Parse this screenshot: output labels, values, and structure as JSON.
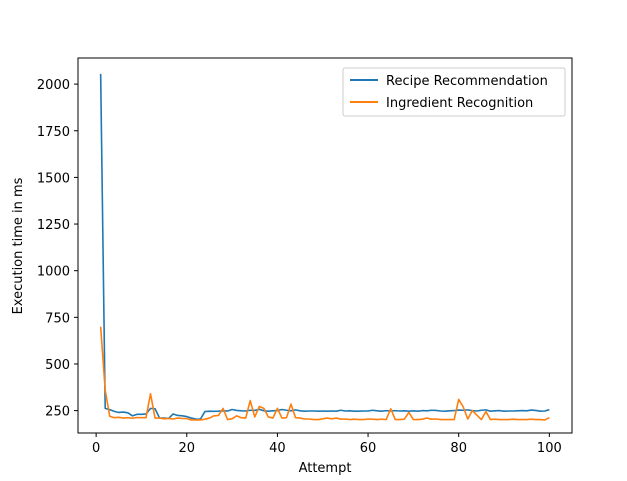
{
  "chart_data": {
    "type": "line",
    "title": "",
    "xlabel": "Attempt",
    "ylabel": "Execution time in ms",
    "xlim": [
      -4,
      105
    ],
    "ylim": [
      130,
      2140
    ],
    "xticks": [
      0,
      20,
      40,
      60,
      80,
      100
    ],
    "yticks": [
      250,
      500,
      750,
      1000,
      1250,
      1500,
      1750,
      2000
    ],
    "grid": false,
    "legend_position": "top-right",
    "series": [
      {
        "name": "Recipe Recommendation",
        "color": "#1f77b4",
        "x": [
          1,
          2,
          3,
          4,
          5,
          6,
          7,
          8,
          9,
          10,
          11,
          12,
          13,
          14,
          15,
          16,
          17,
          18,
          19,
          20,
          21,
          22,
          23,
          24,
          25,
          26,
          27,
          28,
          29,
          30,
          31,
          32,
          33,
          34,
          35,
          36,
          37,
          38,
          39,
          40,
          41,
          42,
          43,
          44,
          45,
          46,
          47,
          48,
          49,
          50,
          51,
          52,
          53,
          54,
          55,
          56,
          57,
          58,
          59,
          60,
          61,
          62,
          63,
          64,
          65,
          66,
          67,
          68,
          69,
          70,
          71,
          72,
          73,
          74,
          75,
          76,
          77,
          78,
          79,
          80,
          81,
          82,
          83,
          84,
          85,
          86,
          87,
          88,
          89,
          90,
          91,
          92,
          93,
          94,
          95,
          96,
          97,
          98,
          99,
          100
        ],
        "values": [
          2055,
          262,
          255,
          246,
          240,
          242,
          238,
          222,
          230,
          230,
          232,
          262,
          260,
          210,
          210,
          208,
          232,
          224,
          222,
          218,
          210,
          205,
          204,
          245,
          247,
          246,
          247,
          249,
          248,
          256,
          251,
          249,
          248,
          252,
          251,
          257,
          249,
          247,
          249,
          250,
          256,
          252,
          249,
          254,
          249,
          247,
          248,
          248,
          247,
          248,
          247,
          248,
          247,
          252,
          248,
          249,
          247,
          247,
          248,
          248,
          252,
          249,
          247,
          250,
          248,
          250,
          248,
          249,
          247,
          249,
          247,
          250,
          249,
          252,
          251,
          248,
          247,
          249,
          250,
          253,
          252,
          254,
          250,
          248,
          252,
          254,
          247,
          249,
          250,
          247,
          248,
          248,
          249,
          250,
          249,
          253,
          251,
          247,
          248,
          255
        ]
      },
      {
        "name": "Ingredient Recognition",
        "color": "#ff7f0e",
        "x": [
          1,
          2,
          3,
          4,
          5,
          6,
          7,
          8,
          9,
          10,
          11,
          12,
          13,
          14,
          15,
          16,
          17,
          18,
          19,
          20,
          21,
          22,
          23,
          24,
          25,
          26,
          27,
          28,
          29,
          30,
          31,
          32,
          33,
          34,
          35,
          36,
          37,
          38,
          39,
          40,
          41,
          42,
          43,
          44,
          45,
          46,
          47,
          48,
          49,
          50,
          51,
          52,
          53,
          54,
          55,
          56,
          57,
          58,
          59,
          60,
          61,
          62,
          63,
          64,
          65,
          66,
          67,
          68,
          69,
          70,
          71,
          72,
          73,
          74,
          75,
          76,
          77,
          78,
          79,
          80,
          81,
          82,
          83,
          84,
          85,
          86,
          87,
          88,
          89,
          90,
          91,
          92,
          93,
          94,
          95,
          96,
          97,
          98,
          99,
          100
        ],
        "values": [
          700,
          360,
          220,
          212,
          214,
          210,
          212,
          209,
          213,
          212,
          212,
          340,
          210,
          210,
          206,
          208,
          205,
          210,
          208,
          207,
          200,
          200,
          200,
          204,
          210,
          222,
          224,
          262,
          202,
          206,
          222,
          212,
          210,
          304,
          216,
          272,
          262,
          216,
          210,
          262,
          210,
          212,
          285,
          212,
          210,
          205,
          205,
          202,
          202,
          206,
          210,
          206,
          210,
          204,
          205,
          202,
          204,
          202,
          202,
          205,
          204,
          202,
          204,
          202,
          260,
          202,
          202,
          204,
          240,
          202,
          202,
          204,
          210,
          204,
          205,
          202,
          202,
          202,
          202,
          310,
          270,
          205,
          250,
          226,
          202,
          245,
          202,
          204,
          202,
          202,
          202,
          204,
          202,
          202,
          202,
          204,
          202,
          202,
          200,
          212
        ]
      }
    ]
  }
}
